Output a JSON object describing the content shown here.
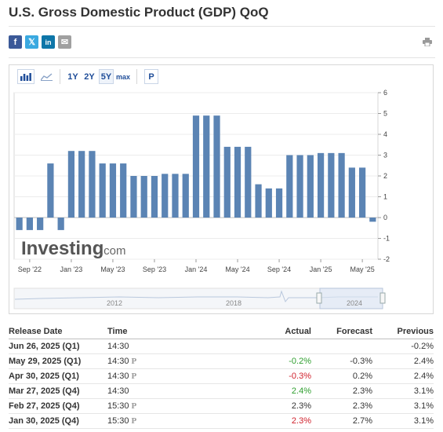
{
  "title": "U.S. Gross Domestic Product (GDP) QoQ",
  "share": {
    "facebook": {
      "glyph": "f",
      "icon": "facebook-icon",
      "color": "#3b5998"
    },
    "twitter": {
      "glyph": "𝕏",
      "icon": "twitter-icon",
      "color": "#3aa9e0"
    },
    "linkedin": {
      "glyph": "in",
      "icon": "linkedin-icon",
      "color": "#0e76a8"
    },
    "email": {
      "glyph": "✉",
      "icon": "email-icon",
      "color": "#a0a0a0"
    }
  },
  "toolbar": {
    "ranges": [
      "1Y",
      "2Y",
      "5Y",
      "max"
    ],
    "active_range": "5Y",
    "p_label": "P"
  },
  "colors": {
    "bar": "#5b84b4",
    "positive": "#2e9e2e",
    "negative": "#d0222d",
    "link": "#1f4d99"
  },
  "chart_data": {
    "type": "bar",
    "values": [
      -0.6,
      -0.6,
      -0.6,
      2.6,
      -0.6,
      3.2,
      3.2,
      3.2,
      2.6,
      2.6,
      2.6,
      2.0,
      2.0,
      2.0,
      2.1,
      2.1,
      2.1,
      4.9,
      4.9,
      4.9,
      3.4,
      3.4,
      3.4,
      1.6,
      1.4,
      1.4,
      3.0,
      3.0,
      3.0,
      3.1,
      3.1,
      3.1,
      2.4,
      2.4,
      -0.2
    ],
    "ylim": [
      -2,
      6
    ],
    "yticks": [
      "6",
      "5",
      "4",
      "3",
      "2",
      "1",
      "0",
      "-1",
      "-2"
    ],
    "xticks": [
      {
        "label": "Sep '22",
        "index": 1
      },
      {
        "label": "Jan '23",
        "index": 5
      },
      {
        "label": "May '23",
        "index": 9
      },
      {
        "label": "Sep '23",
        "index": 13
      },
      {
        "label": "Jan '24",
        "index": 17
      },
      {
        "label": "May '24",
        "index": 21
      },
      {
        "label": "Sep '24",
        "index": 25
      },
      {
        "label": "Jan '25",
        "index": 29
      },
      {
        "label": "May '25",
        "index": 33
      }
    ],
    "navigator_years": [
      "2012",
      "2018",
      "2024"
    ],
    "watermark": "Investing",
    "watermark_suffix": ".com"
  },
  "table": {
    "headers": {
      "date": "Release Date",
      "time": "Time",
      "actual": "Actual",
      "forecast": "Forecast",
      "previous": "Previous"
    },
    "rows": [
      {
        "date": "Jun 26, 2025 (Q1)",
        "time": "14:30",
        "prelim": "",
        "actual": "",
        "actual_color": "neutral",
        "forecast": "",
        "previous": "-0.2%"
      },
      {
        "date": "May 29, 2025 (Q1)",
        "time": "14:30",
        "prelim": "P",
        "actual": "-0.2%",
        "actual_color": "positive",
        "forecast": "-0.3%",
        "previous": "2.4%"
      },
      {
        "date": "Apr 30, 2025 (Q1)",
        "time": "14:30",
        "prelim": "P",
        "actual": "-0.3%",
        "actual_color": "negative",
        "forecast": "0.2%",
        "previous": "2.4%"
      },
      {
        "date": "Mar 27, 2025 (Q4)",
        "time": "14:30",
        "prelim": "",
        "actual": "2.4%",
        "actual_color": "positive",
        "forecast": "2.3%",
        "previous": "3.1%"
      },
      {
        "date": "Feb 27, 2025 (Q4)",
        "time": "15:30",
        "prelim": "P",
        "actual": "2.3%",
        "actual_color": "neutral",
        "forecast": "2.3%",
        "previous": "3.1%"
      },
      {
        "date": "Jan 30, 2025 (Q4)",
        "time": "15:30",
        "prelim": "P",
        "actual": "2.3%",
        "actual_color": "negative",
        "forecast": "2.7%",
        "previous": "3.1%"
      }
    ]
  }
}
